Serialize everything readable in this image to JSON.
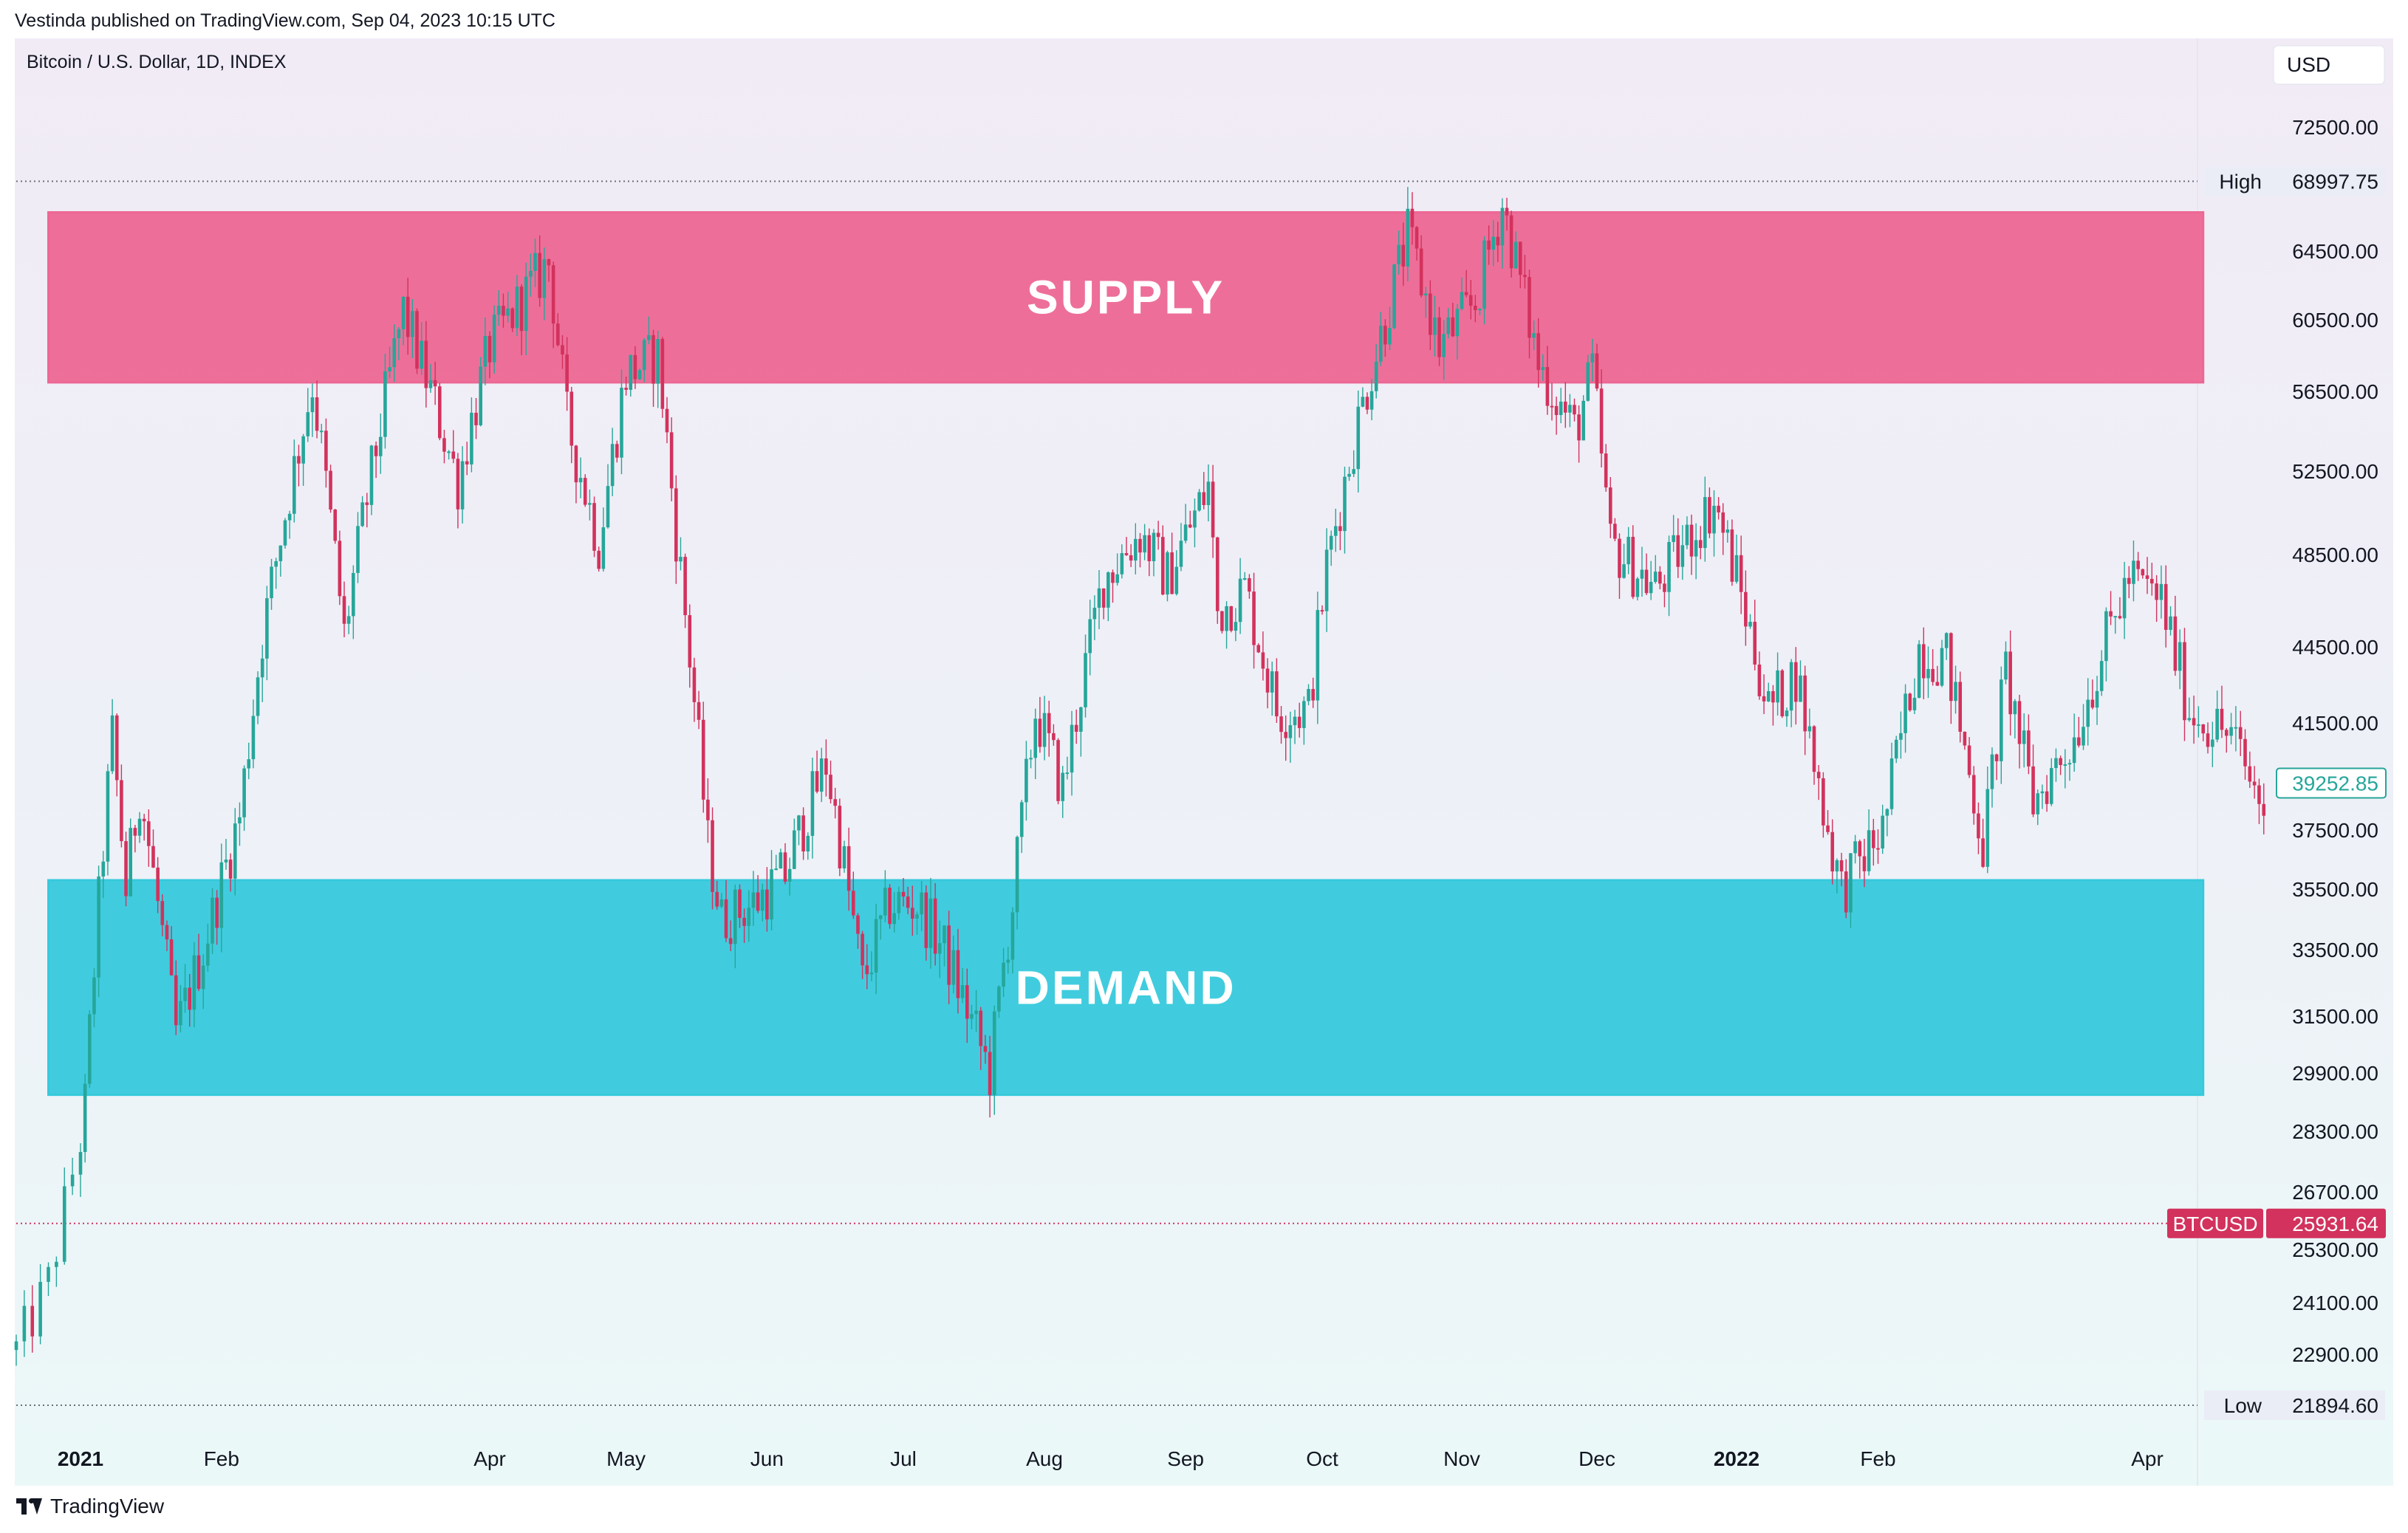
{
  "header": {
    "published": "Vestinda published on TradingView.com, Sep 04, 2023 10:15 UTC"
  },
  "footer": {
    "brand": "TradingView"
  },
  "chart_data": {
    "type": "candlestick",
    "symbol_line": "Bitcoin / U.S. Dollar, 1D, INDEX",
    "currency_button": "USD",
    "y_ticks": [
      "72500.00",
      "64500.00",
      "60500.00",
      "56500.00",
      "52500.00",
      "48500.00",
      "44500.00",
      "41500.00",
      "37500.00",
      "35500.00",
      "33500.00",
      "31500.00",
      "29900.00",
      "28300.00",
      "26700.00",
      "25300.00",
      "24100.00",
      "22900.00"
    ],
    "x_ticks": [
      {
        "label": "2021",
        "date": "2021-01-01",
        "bold": true
      },
      {
        "label": "Feb",
        "date": "2021-02-01",
        "bold": false
      },
      {
        "label": "Apr",
        "date": "2021-04-01",
        "bold": false
      },
      {
        "label": "May",
        "date": "2021-05-01",
        "bold": false
      },
      {
        "label": "Jun",
        "date": "2021-06-01",
        "bold": false
      },
      {
        "label": "Jul",
        "date": "2021-07-01",
        "bold": false
      },
      {
        "label": "Aug",
        "date": "2021-08-01",
        "bold": false
      },
      {
        "label": "Sep",
        "date": "2021-09-01",
        "bold": false
      },
      {
        "label": "Oct",
        "date": "2021-10-01",
        "bold": false
      },
      {
        "label": "Nov",
        "date": "2021-11-01",
        "bold": false
      },
      {
        "label": "Dec",
        "date": "2021-12-01",
        "bold": false
      },
      {
        "label": "2022",
        "date": "2022-01-01",
        "bold": true
      },
      {
        "label": "Feb",
        "date": "2022-02-01",
        "bold": false
      },
      {
        "label": "Apr",
        "date": "2022-04-01",
        "bold": false
      }
    ],
    "y_range": [
      21000,
      75000
    ],
    "x_range": [
      "2020-12-24",
      "2022-04-30"
    ],
    "zones": [
      {
        "label": "SUPPLY",
        "top": 67000,
        "bottom": 57000,
        "start": "2020-12-28",
        "end": "2022-04-13",
        "color": "#ec6894"
      },
      {
        "label": "DEMAND",
        "top": 35800,
        "bottom": 29300,
        "start": "2020-12-28",
        "end": "2022-04-13",
        "color": "#37c9dc"
      }
    ],
    "markers": [
      {
        "label": "High",
        "value": "68997.75"
      },
      {
        "label": "Low",
        "value": "21894.60"
      }
    ],
    "last_price": {
      "value": "39252.85",
      "color": "#26a69a"
    },
    "current_price": {
      "symbol": "BTCUSD",
      "value": "25931.64",
      "color": "#d2325d"
    },
    "up_color": "#26a69a",
    "down_color": "#d2325d",
    "path": [
      [
        "2020-12-24",
        23000
      ],
      [
        "2020-12-28",
        24500
      ],
      [
        "2021-01-02",
        29000
      ],
      [
        "2021-01-08",
        41000
      ],
      [
        "2021-01-11",
        35500
      ],
      [
        "2021-01-14",
        39000
      ],
      [
        "2021-01-22",
        31000
      ],
      [
        "2021-01-28",
        33500
      ],
      [
        "2021-02-05",
        38000
      ],
      [
        "2021-02-10",
        45000
      ],
      [
        "2021-02-21",
        57000
      ],
      [
        "2021-02-28",
        45000
      ],
      [
        "2021-03-13",
        61000
      ],
      [
        "2021-03-25",
        52000
      ],
      [
        "2021-04-01",
        59000
      ],
      [
        "2021-04-14",
        63800
      ],
      [
        "2021-04-18",
        55000
      ],
      [
        "2021-04-25",
        49000
      ],
      [
        "2021-05-01",
        57500
      ],
      [
        "2021-05-08",
        58500
      ],
      [
        "2021-05-12",
        49500
      ],
      [
        "2021-05-19",
        37000
      ],
      [
        "2021-05-22",
        34500
      ],
      [
        "2021-05-29",
        35000
      ],
      [
        "2021-06-05",
        36000
      ],
      [
        "2021-06-14",
        40000
      ],
      [
        "2021-06-22",
        32500
      ],
      [
        "2021-06-28",
        35000
      ],
      [
        "2021-07-04",
        35000
      ],
      [
        "2021-07-10",
        33500
      ],
      [
        "2021-07-20",
        29900
      ],
      [
        "2021-07-25",
        35000
      ],
      [
        "2021-07-30",
        42000
      ],
      [
        "2021-08-05",
        39000
      ],
      [
        "2021-08-14",
        47500
      ],
      [
        "2021-08-22",
        49500
      ],
      [
        "2021-08-28",
        47500
      ],
      [
        "2021-09-06",
        51800
      ],
      [
        "2021-09-08",
        46000
      ],
      [
        "2021-09-14",
        47000
      ],
      [
        "2021-09-21",
        42000
      ],
      [
        "2021-09-28",
        42000
      ],
      [
        "2021-10-02",
        48000
      ],
      [
        "2021-10-08",
        54000
      ],
      [
        "2021-10-16",
        61500
      ],
      [
        "2021-10-20",
        65500
      ],
      [
        "2021-10-27",
        59000
      ],
      [
        "2021-11-04",
        61500
      ],
      [
        "2021-11-10",
        67500
      ],
      [
        "2021-11-18",
        58000
      ],
      [
        "2021-11-26",
        54500
      ],
      [
        "2021-11-30",
        57500
      ],
      [
        "2021-12-04",
        49000
      ],
      [
        "2021-12-14",
        47000
      ],
      [
        "2021-12-27",
        51000
      ],
      [
        "2022-01-01",
        47500
      ],
      [
        "2022-01-08",
        42000
      ],
      [
        "2022-01-14",
        43500
      ],
      [
        "2022-01-21",
        37500
      ],
      [
        "2022-01-24",
        35500
      ],
      [
        "2022-02-02",
        37500
      ],
      [
        "2022-02-10",
        44500
      ],
      [
        "2022-02-16",
        44000
      ],
      [
        "2022-02-24",
        37000
      ],
      [
        "2022-03-01",
        43500
      ],
      [
        "2022-03-07",
        38500
      ],
      [
        "2022-03-16",
        41000
      ],
      [
        "2022-03-28",
        47500
      ],
      [
        "2022-04-04",
        46500
      ],
      [
        "2022-04-10",
        42000
      ],
      [
        "2022-04-19",
        41000
      ],
      [
        "2022-04-22",
        39800
      ],
      [
        "2022-04-26",
        38300
      ]
    ]
  }
}
